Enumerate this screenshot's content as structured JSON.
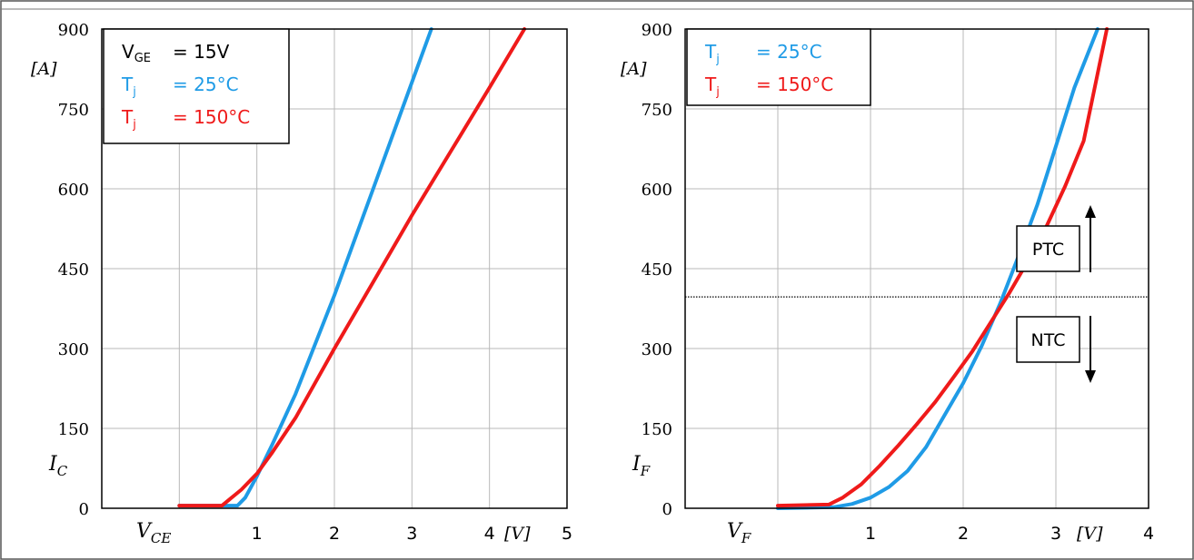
{
  "chart_data": [
    {
      "type": "line",
      "title": "",
      "xlabel": "V_CE",
      "xunit": "[V]",
      "ylabel": "I_C",
      "yunit": "[A]",
      "xlim": [
        0,
        5
      ],
      "ylim": [
        0,
        900
      ],
      "xticks": [
        "1",
        "2",
        "3",
        "4",
        "5"
      ],
      "yticks": [
        "0",
        "150",
        "300",
        "450",
        "600",
        "750",
        "900"
      ],
      "grid": true,
      "legend_position": "top-left",
      "legend": {
        "condition": "V",
        "condition_sub": "GE",
        "condition_value": "= 15V"
      },
      "series": [
        {
          "name": "T",
          "name_sub": "j",
          "label_value": "= 25°C",
          "color": "#1f9be6",
          "x": [
            0.0,
            0.75,
            0.85,
            1.0,
            1.2,
            1.5,
            2.0,
            2.5,
            3.0,
            3.25
          ],
          "y": [
            5,
            5,
            20,
            60,
            120,
            215,
            400,
            600,
            800,
            900
          ]
        },
        {
          "name": "T",
          "name_sub": "j",
          "label_value": "= 150°C",
          "color": "#ef1a1a",
          "x": [
            0.0,
            0.55,
            0.8,
            1.0,
            1.2,
            1.5,
            2.0,
            2.5,
            3.0,
            3.5,
            4.0,
            4.45
          ],
          "y": [
            5,
            5,
            35,
            65,
            105,
            170,
            300,
            425,
            550,
            670,
            790,
            900
          ]
        }
      ]
    },
    {
      "type": "line",
      "title": "",
      "xlabel": "V_F",
      "xunit": "[V]",
      "ylabel": "I_F",
      "yunit": "[A]",
      "xlim": [
        0,
        4
      ],
      "ylim": [
        0,
        900
      ],
      "xticks": [
        "1",
        "2",
        "3",
        "4"
      ],
      "yticks": [
        "0",
        "150",
        "300",
        "450",
        "600",
        "750",
        "900"
      ],
      "grid": true,
      "legend_position": "top-left",
      "reference_line_y": 397,
      "annotations": {
        "upper": "PTC",
        "lower": "NTC"
      },
      "series": [
        {
          "name": "T",
          "name_sub": "j",
          "label_value": "= 25°C",
          "color": "#1f9be6",
          "x": [
            0.0,
            0.6,
            0.8,
            1.0,
            1.2,
            1.4,
            1.6,
            1.8,
            2.0,
            2.2,
            2.4,
            2.6,
            2.8,
            3.0,
            3.2,
            3.45
          ],
          "y": [
            0,
            2,
            8,
            20,
            40,
            70,
            115,
            175,
            235,
            305,
            385,
            475,
            570,
            680,
            790,
            900
          ]
        },
        {
          "name": "T",
          "name_sub": "j",
          "label_value": "= 150°C",
          "color": "#ef1a1a",
          "x": [
            0.0,
            0.55,
            0.7,
            0.9,
            1.1,
            1.3,
            1.5,
            1.7,
            1.9,
            2.1,
            2.3,
            2.5,
            2.7,
            2.9,
            3.1,
            3.3,
            3.55
          ],
          "y": [
            5,
            7,
            20,
            45,
            80,
            118,
            158,
            200,
            247,
            295,
            350,
            405,
            465,
            530,
            605,
            690,
            900
          ]
        }
      ]
    }
  ]
}
